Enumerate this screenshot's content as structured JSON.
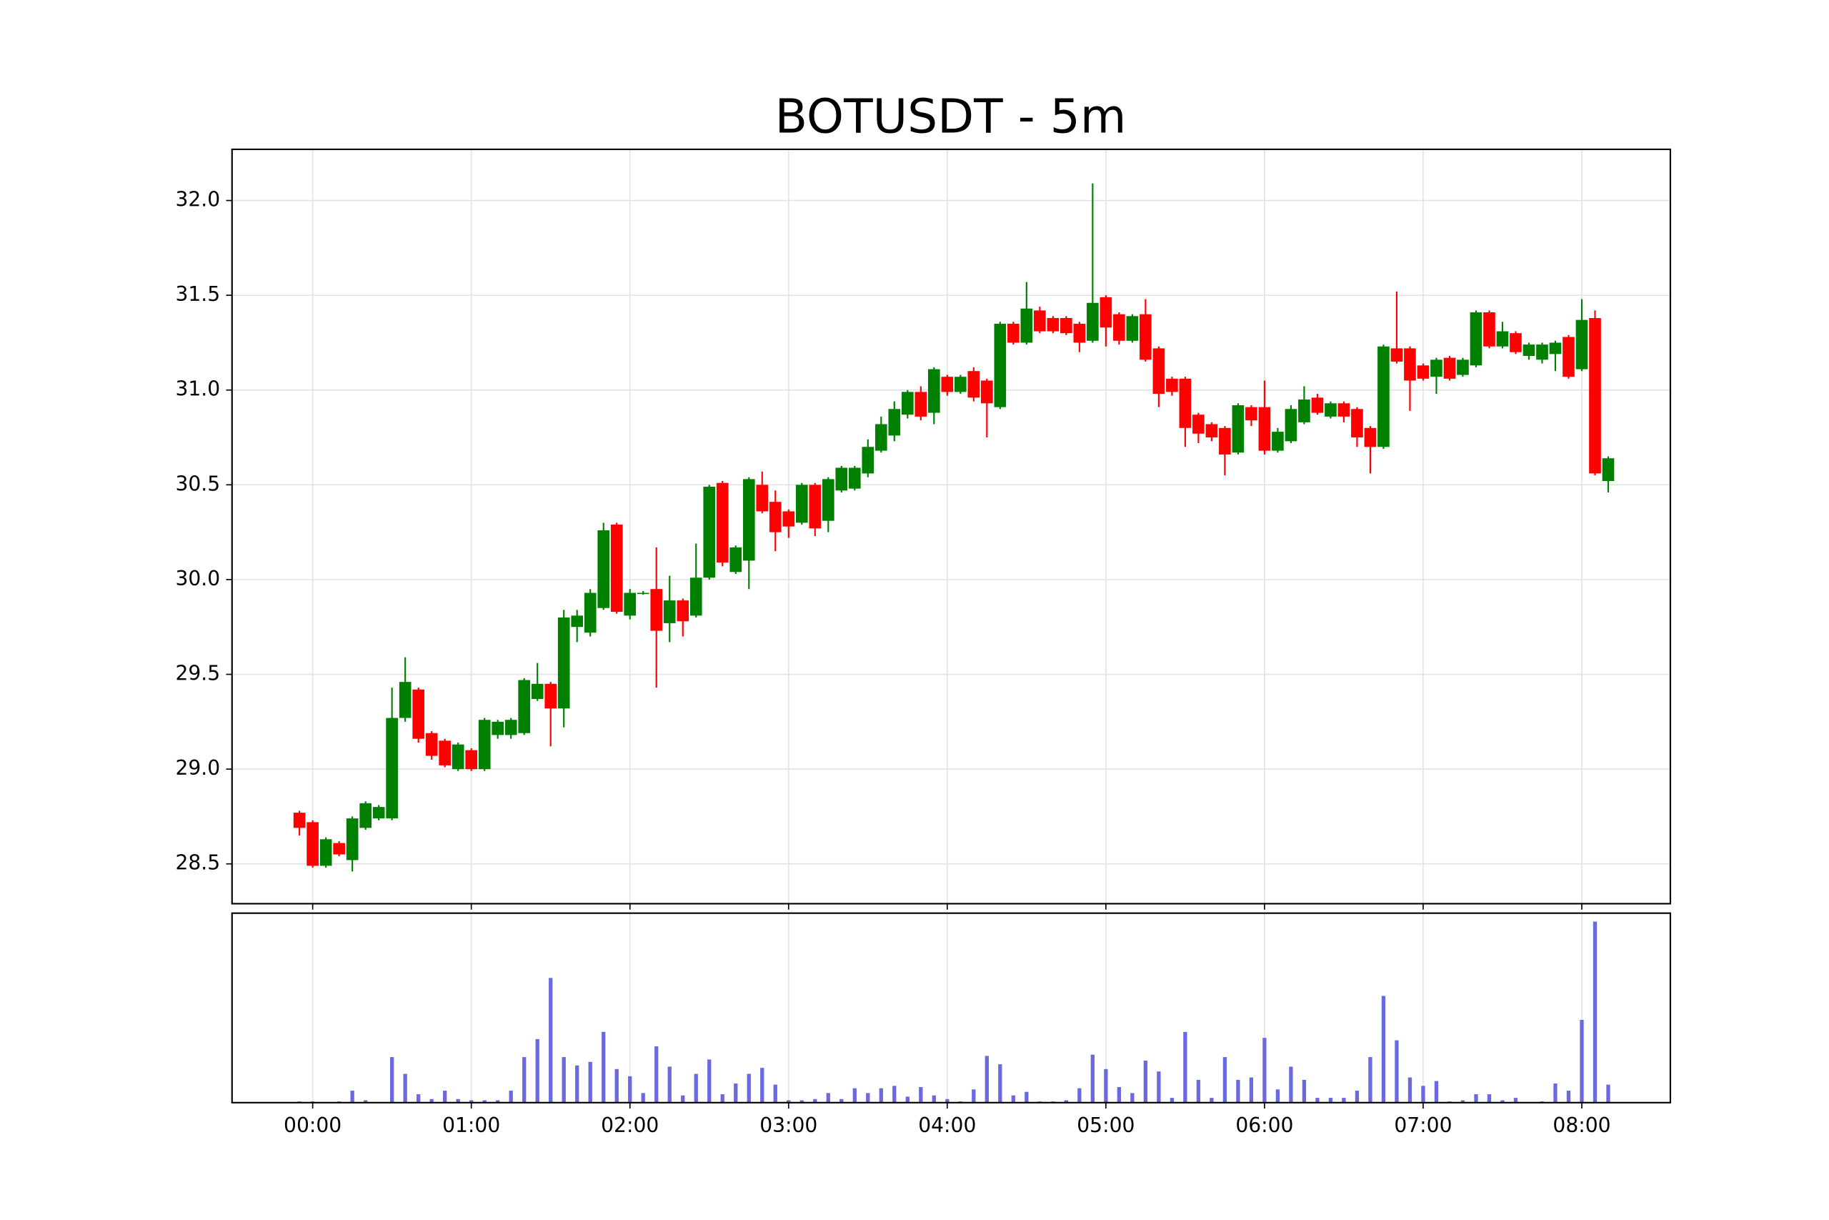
{
  "chart_data": {
    "type": "candlestick",
    "title": "BOTUSDT - 5m",
    "x": [
      "23:55",
      "00:00",
      "00:05",
      "00:10",
      "00:15",
      "00:20",
      "00:25",
      "00:30",
      "00:35",
      "00:40",
      "00:45",
      "00:50",
      "00:55",
      "01:00",
      "01:05",
      "01:10",
      "01:15",
      "01:20",
      "01:25",
      "01:30",
      "01:35",
      "01:40",
      "01:45",
      "01:50",
      "01:55",
      "02:00",
      "02:05",
      "02:10",
      "02:15",
      "02:20",
      "02:25",
      "02:30",
      "02:35",
      "02:40",
      "02:45",
      "02:50",
      "02:55",
      "03:00",
      "03:05",
      "03:10",
      "03:15",
      "03:20",
      "03:25",
      "03:30",
      "03:35",
      "03:40",
      "03:45",
      "03:50",
      "03:55",
      "04:00",
      "04:05",
      "04:10",
      "04:15",
      "04:20",
      "04:25",
      "04:30",
      "04:35",
      "04:40",
      "04:45",
      "04:50",
      "04:55",
      "05:00",
      "05:05",
      "05:10",
      "05:15",
      "05:20",
      "05:25",
      "05:30",
      "05:35",
      "05:40",
      "05:45",
      "05:50",
      "05:55",
      "06:00",
      "06:05",
      "06:10",
      "06:15",
      "06:20",
      "06:25",
      "06:30",
      "06:35",
      "06:40",
      "06:45",
      "06:50",
      "06:55",
      "07:00",
      "07:05",
      "07:10",
      "07:15",
      "07:20",
      "07:25",
      "07:30",
      "07:35",
      "07:40",
      "07:45",
      "07:50",
      "07:55",
      "08:00",
      "08:05",
      "08:10"
    ],
    "open": [
      28.77,
      28.72,
      28.49,
      28.61,
      28.52,
      28.69,
      28.74,
      28.74,
      29.27,
      29.42,
      29.19,
      29.15,
      29.0,
      29.1,
      29.0,
      29.18,
      29.18,
      29.19,
      29.37,
      29.45,
      29.32,
      29.75,
      29.72,
      29.85,
      30.29,
      29.81,
      29.93,
      29.95,
      29.77,
      29.89,
      29.81,
      30.01,
      30.51,
      30.04,
      30.1,
      30.5,
      30.41,
      30.36,
      30.3,
      30.5,
      30.31,
      30.47,
      30.48,
      30.56,
      30.68,
      30.76,
      30.87,
      30.99,
      30.88,
      31.07,
      30.99,
      31.1,
      31.05,
      30.91,
      31.35,
      31.25,
      31.42,
      31.38,
      31.38,
      31.35,
      31.26,
      31.49,
      31.4,
      31.26,
      31.4,
      31.22,
      31.06,
      31.06,
      30.87,
      30.82,
      30.8,
      30.67,
      30.91,
      30.91,
      30.68,
      30.73,
      30.83,
      30.96,
      30.86,
      30.93,
      30.9,
      30.8,
      30.7,
      31.22,
      31.22,
      31.13,
      31.07,
      31.17,
      31.08,
      31.13,
      31.41,
      31.23,
      31.3,
      31.18,
      31.16,
      31.19,
      31.28,
      31.11,
      31.38,
      30.52
    ],
    "high": [
      28.78,
      28.73,
      28.64,
      28.62,
      28.75,
      28.83,
      28.81,
      29.43,
      29.59,
      29.43,
      29.2,
      29.16,
      29.14,
      29.11,
      29.27,
      29.26,
      29.27,
      29.48,
      29.56,
      29.46,
      29.84,
      29.84,
      29.95,
      30.3,
      30.3,
      29.95,
      29.94,
      30.17,
      30.02,
      29.9,
      30.19,
      30.5,
      30.52,
      30.18,
      30.54,
      30.57,
      30.47,
      30.37,
      30.51,
      30.51,
      30.54,
      30.6,
      30.6,
      30.74,
      30.86,
      30.94,
      31.0,
      31.02,
      31.12,
      31.08,
      31.08,
      31.12,
      31.06,
      31.36,
      31.36,
      31.57,
      31.44,
      31.39,
      31.39,
      31.36,
      32.09,
      31.5,
      31.41,
      31.4,
      31.48,
      31.23,
      31.07,
      31.07,
      30.88,
      30.83,
      30.81,
      30.93,
      30.92,
      31.05,
      30.8,
      30.92,
      31.02,
      30.98,
      30.94,
      30.94,
      30.91,
      30.81,
      31.24,
      31.52,
      31.23,
      31.14,
      31.17,
      31.18,
      31.17,
      31.42,
      31.42,
      31.36,
      31.31,
      31.25,
      31.25,
      31.26,
      31.29,
      31.48,
      31.42,
      30.65
    ],
    "low": [
      28.65,
      28.48,
      28.48,
      28.54,
      28.46,
      28.68,
      28.73,
      28.73,
      29.25,
      29.14,
      29.05,
      29.01,
      28.99,
      28.99,
      28.99,
      29.16,
      29.16,
      29.18,
      29.36,
      29.12,
      29.22,
      29.67,
      29.7,
      29.84,
      29.82,
      29.79,
      29.92,
      29.43,
      29.67,
      29.7,
      29.8,
      30.0,
      30.07,
      30.03,
      29.95,
      30.35,
      30.15,
      30.22,
      30.29,
      30.23,
      30.25,
      30.46,
      30.47,
      30.54,
      30.67,
      30.73,
      30.85,
      30.84,
      30.82,
      30.97,
      30.98,
      30.94,
      30.75,
      30.9,
      31.24,
      31.24,
      31.3,
      31.3,
      31.29,
      31.2,
      31.25,
      31.23,
      31.24,
      31.25,
      31.15,
      30.91,
      30.97,
      30.7,
      30.72,
      30.73,
      30.55,
      30.66,
      30.81,
      30.66,
      30.67,
      30.72,
      30.82,
      30.87,
      30.85,
      30.83,
      30.7,
      30.56,
      30.69,
      31.14,
      30.89,
      31.05,
      30.98,
      31.05,
      31.07,
      31.12,
      31.22,
      31.22,
      31.19,
      31.16,
      31.14,
      31.1,
      31.06,
      31.1,
      30.55,
      30.46
    ],
    "close": [
      28.69,
      28.49,
      28.63,
      28.55,
      28.74,
      28.82,
      28.8,
      29.27,
      29.46,
      29.16,
      29.07,
      29.02,
      29.13,
      29.0,
      29.26,
      29.25,
      29.26,
      29.47,
      29.45,
      29.32,
      29.8,
      29.81,
      29.93,
      30.26,
      29.83,
      29.93,
      29.93,
      29.73,
      29.89,
      29.78,
      30.01,
      30.49,
      30.09,
      30.17,
      30.53,
      30.36,
      30.25,
      30.28,
      30.5,
      30.27,
      30.53,
      30.59,
      30.59,
      30.7,
      30.82,
      30.9,
      30.99,
      30.86,
      31.11,
      30.99,
      31.07,
      30.96,
      30.93,
      31.35,
      31.25,
      31.43,
      31.31,
      31.31,
      31.3,
      31.25,
      31.46,
      31.33,
      31.26,
      31.39,
      31.16,
      30.98,
      30.99,
      30.8,
      30.77,
      30.75,
      30.66,
      30.92,
      30.84,
      30.68,
      30.78,
      30.9,
      30.95,
      30.88,
      30.93,
      30.86,
      30.75,
      30.7,
      31.23,
      31.15,
      31.05,
      31.06,
      31.16,
      31.06,
      31.16,
      31.41,
      31.23,
      31.31,
      31.2,
      31.24,
      31.24,
      31.25,
      31.07,
      31.37,
      30.56,
      30.64
    ],
    "volume": [
      1,
      1,
      0,
      1,
      10,
      2,
      0,
      38,
      24,
      7,
      3,
      10,
      3,
      2,
      2,
      2,
      10,
      38,
      53,
      104,
      38,
      31,
      34,
      59,
      28,
      22,
      8,
      47,
      30,
      6,
      24,
      36,
      7,
      16,
      24,
      29,
      15,
      2,
      2,
      3,
      8,
      3,
      12,
      8,
      12,
      14,
      5,
      13,
      6,
      3,
      1,
      11,
      39,
      32,
      6,
      9,
      1,
      1,
      2,
      12,
      40,
      28,
      13,
      8,
      35,
      26,
      4,
      59,
      19,
      4,
      38,
      19,
      21,
      54,
      11,
      30,
      19,
      4,
      4,
      4,
      10,
      38,
      89,
      52,
      21,
      14,
      18,
      1,
      2,
      7,
      7,
      2,
      4,
      0,
      1,
      16,
      10,
      69,
      151,
      15
    ],
    "up_color": "#008000",
    "down_color": "#ff0000",
    "volume_color": "#6a6ae0",
    "ylim": [
      28.29,
      32.27
    ],
    "yticks": [
      28.5,
      {
        "value": 29,
        "label": "29.0"
      },
      29.5,
      {
        "value": 30,
        "label": "30.0"
      },
      30.5,
      {
        "value": 31,
        "label": "31.0"
      },
      31.5,
      {
        "value": 32,
        "label": "32.0"
      }
    ],
    "volume_ylim": [
      0,
      158
    ],
    "xticks": [
      "00:00",
      "01:00",
      "02:00",
      "03:00",
      "04:00",
      "05:00",
      "06:00",
      "07:00",
      "08:00"
    ],
    "grid": true
  }
}
